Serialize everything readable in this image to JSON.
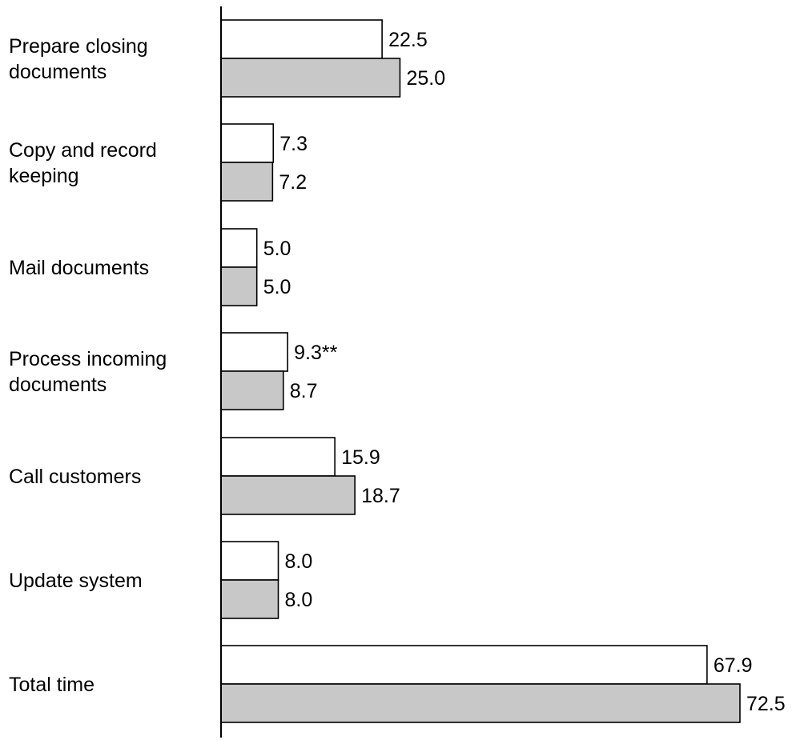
{
  "chart_data": {
    "type": "bar",
    "orientation": "horizontal",
    "title": "",
    "xlabel": "",
    "ylabel": "",
    "categories": [
      [
        "Prepare closing",
        "documents"
      ],
      [
        "Copy and record",
        "keeping"
      ],
      [
        "Mail documents"
      ],
      [
        "Process incoming",
        "documents"
      ],
      [
        "Call customers"
      ],
      [
        "Update system"
      ],
      [
        "Total time"
      ]
    ],
    "series": [
      {
        "color": "#ffffff",
        "values": [
          22.5,
          7.3,
          5.0,
          9.3,
          15.9,
          8.0,
          67.9
        ],
        "value_labels": [
          "22.5",
          "7.3",
          "5.0",
          "9.3**",
          "15.9",
          "8.0",
          "67.9"
        ]
      },
      {
        "color": "#c8c8c8",
        "values": [
          25.0,
          7.2,
          5.0,
          8.7,
          18.7,
          8.0,
          72.5
        ],
        "value_labels": [
          "25.0",
          "7.2",
          "5.0",
          "8.7",
          "18.7",
          "8.0",
          "72.5"
        ]
      }
    ],
    "xlim": [
      0,
      72.5
    ],
    "grid": false,
    "legend": "none"
  }
}
